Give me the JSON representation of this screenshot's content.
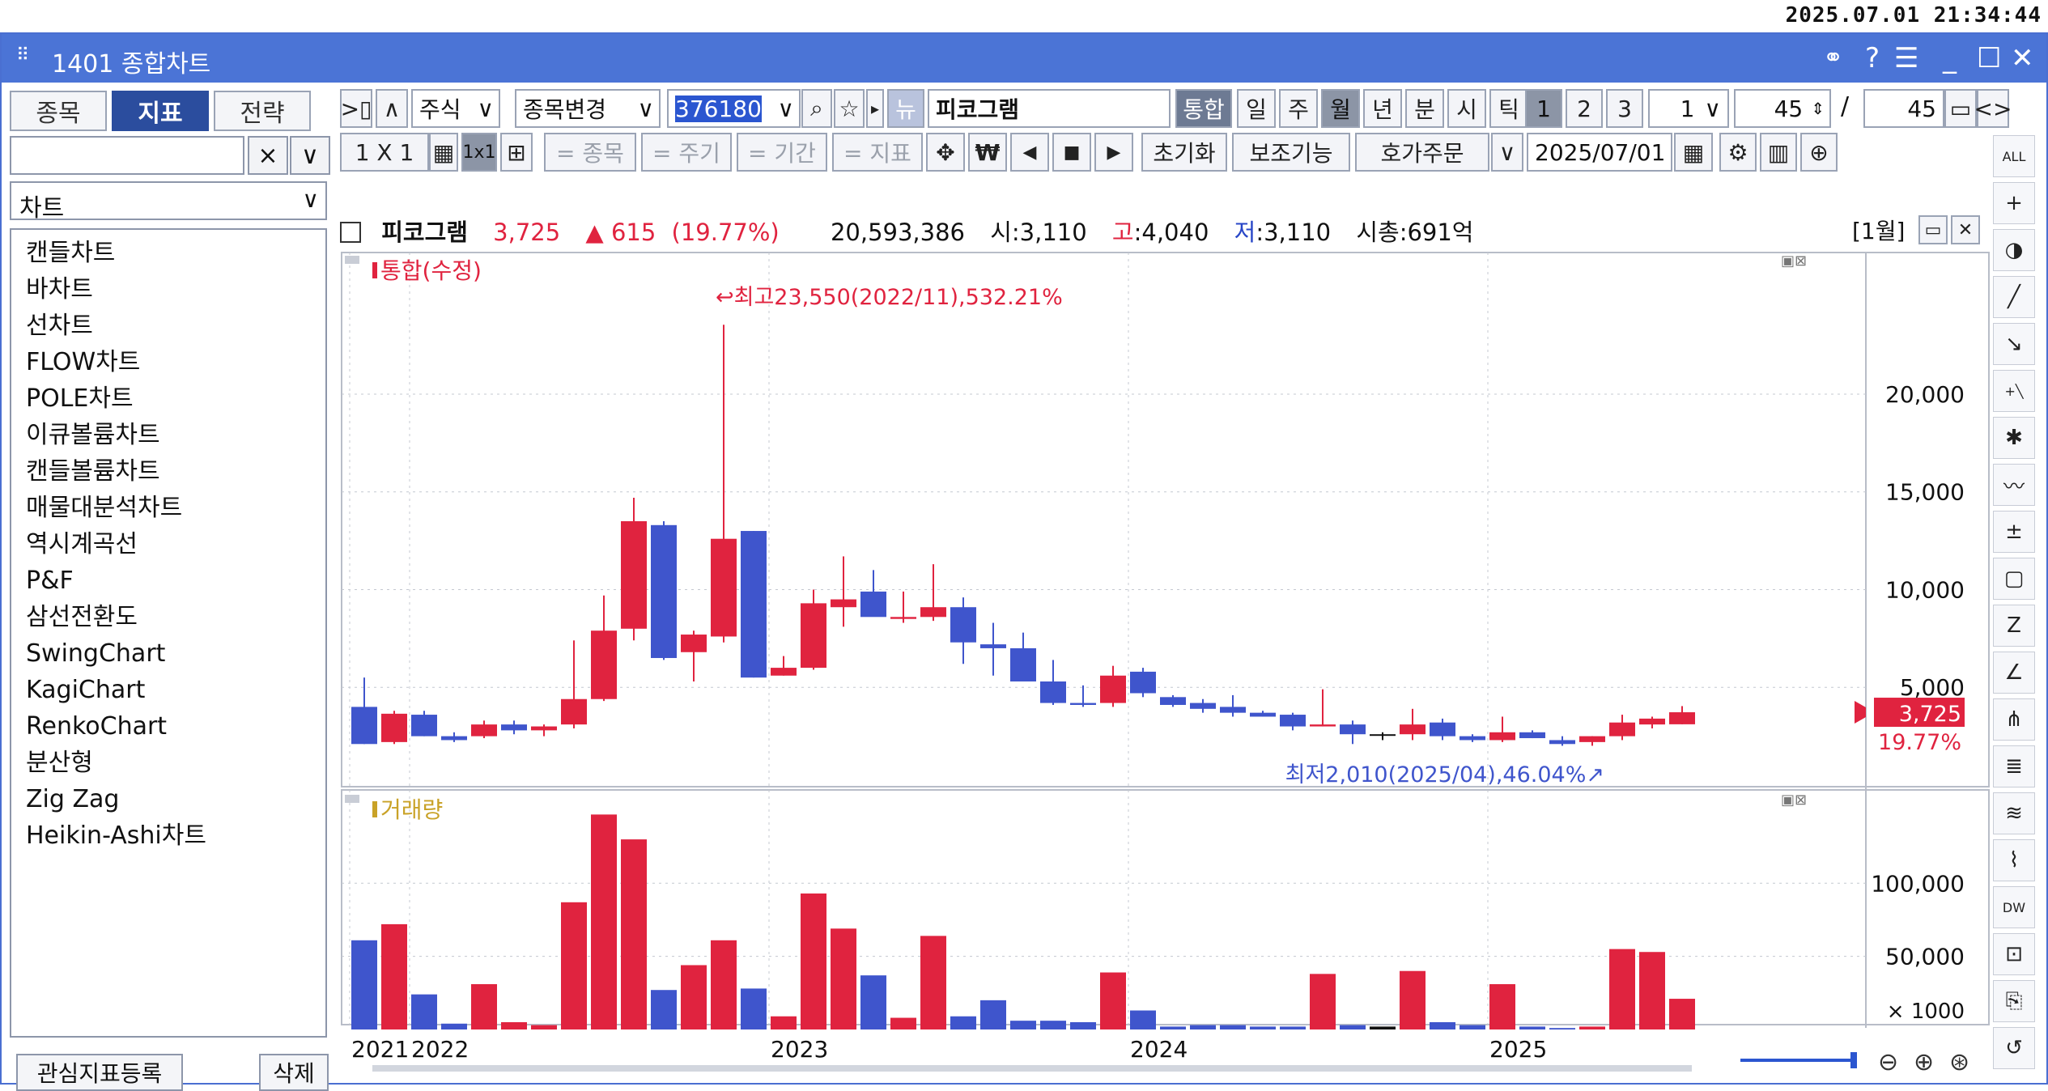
{
  "clock": "2025.07.01 21:34:44",
  "window": {
    "title": "1401 종합차트"
  },
  "left_panel": {
    "tabs": [
      "종목",
      "지표",
      "전략"
    ],
    "active_tab": "지표",
    "search_placeholder": "",
    "clear_label": "×",
    "dropdown_label": "∨",
    "category": "차트",
    "items": [
      "캔들차트",
      "바차트",
      "선차트",
      "FLOW차트",
      "POLE차트",
      "이큐볼륨차트",
      "캔들볼륨차트",
      "매물대분석차트",
      "역시계곡선",
      "P&F",
      "삼선전환도",
      "SwingChart",
      "KagiChart",
      "RenkoChart",
      "분산형",
      "Zig Zag",
      "Heikin-Ashi차트"
    ],
    "footer_register": "관심지표등록",
    "footer_delete": "삭제"
  },
  "toolbar1": {
    "market": "주식",
    "change_stock": "종목변경",
    "code": "376180",
    "news": "뉴",
    "stock_name": "피코그램",
    "integrated": "통합",
    "periods": [
      "일",
      "주",
      "월",
      "년",
      "분",
      "시",
      "틱"
    ],
    "active_period": "월",
    "nums": [
      "1",
      "2",
      "3"
    ],
    "unit": "1",
    "count_a": "45",
    "slash": "/",
    "count_b": "45"
  },
  "toolbar2": {
    "layout": "1 X 1",
    "l1x1": "1x1",
    "items_label": "= 종목",
    "period_label": "= 주기",
    "range_label": "= 기간",
    "indicator_label": "= 지표",
    "won": "₩",
    "reset": "초기화",
    "aux": "보조기능",
    "order": "호가주문",
    "date": "2025/07/01"
  },
  "info": {
    "name": "피코그램",
    "price": "3,725",
    "change": "▲ 615",
    "rate": "(19.77%)",
    "volume": "20,593,386",
    "open": "시:3,110",
    "high_label": "고",
    "high": ":4,040",
    "low_label": "저",
    "low": ":3,110",
    "cap": "시총:691억",
    "period_tag": "[1월]"
  },
  "chart_data": [
    {
      "type": "candlestick",
      "title": "통합(수정)",
      "y_ticks": [
        5000,
        10000,
        15000,
        20000
      ],
      "y_tick_labels": [
        "5,000",
        "10,000",
        "15,000",
        "20,000"
      ],
      "ylim": [
        0,
        26500
      ],
      "x_labels": [
        {
          "index": 0,
          "label": "2021"
        },
        {
          "index": 2,
          "label": "2022"
        },
        {
          "index": 14,
          "label": "2023"
        },
        {
          "index": 26,
          "label": "2024"
        },
        {
          "index": 38,
          "label": "2025"
        }
      ],
      "annotations": {
        "high": "최고23,550(2022/11),532.21%",
        "low": "최저2,010(2025/04),46.04%"
      },
      "last_price": "3,725",
      "last_rate": "19.77%",
      "candles": [
        {
          "o": 4000,
          "h": 5500,
          "l": 2100,
          "c": 2100
        },
        {
          "o": 2200,
          "h": 3800,
          "l": 2100,
          "c": 3650
        },
        {
          "o": 3600,
          "h": 3800,
          "l": 2500,
          "c": 2500
        },
        {
          "o": 2500,
          "h": 2700,
          "l": 2200,
          "c": 2300
        },
        {
          "o": 2500,
          "h": 3300,
          "l": 2400,
          "c": 3100
        },
        {
          "o": 3100,
          "h": 3300,
          "l": 2600,
          "c": 2800
        },
        {
          "o": 2800,
          "h": 3100,
          "l": 2500,
          "c": 3000
        },
        {
          "o": 3100,
          "h": 7400,
          "l": 2900,
          "c": 4400
        },
        {
          "o": 4400,
          "h": 9700,
          "l": 4300,
          "c": 7900
        },
        {
          "o": 8000,
          "h": 14700,
          "l": 7400,
          "c": 13500
        },
        {
          "o": 13300,
          "h": 13500,
          "l": 6400,
          "c": 6500
        },
        {
          "o": 6800,
          "h": 7900,
          "l": 5300,
          "c": 7700
        },
        {
          "o": 7600,
          "h": 23550,
          "l": 7300,
          "c": 12600
        },
        {
          "o": 13000,
          "h": 13000,
          "l": 5500,
          "c": 5500
        },
        {
          "o": 5600,
          "h": 6600,
          "l": 5600,
          "c": 6000
        },
        {
          "o": 6000,
          "h": 10000,
          "l": 5900,
          "c": 9300
        },
        {
          "o": 9100,
          "h": 11700,
          "l": 8100,
          "c": 9500
        },
        {
          "o": 9900,
          "h": 11000,
          "l": 8800,
          "c": 8600
        },
        {
          "o": 8500,
          "h": 9900,
          "l": 8300,
          "c": 8600
        },
        {
          "o": 8600,
          "h": 11300,
          "l": 8400,
          "c": 9100
        },
        {
          "o": 9100,
          "h": 9600,
          "l": 6200,
          "c": 7300
        },
        {
          "o": 7200,
          "h": 8300,
          "l": 5600,
          "c": 7000
        },
        {
          "o": 7000,
          "h": 7800,
          "l": 5300,
          "c": 5300
        },
        {
          "o": 5300,
          "h": 6400,
          "l": 4100,
          "c": 4200
        },
        {
          "o": 4200,
          "h": 5100,
          "l": 4000,
          "c": 4100
        },
        {
          "o": 4200,
          "h": 6100,
          "l": 4000,
          "c": 5600
        },
        {
          "o": 5800,
          "h": 6000,
          "l": 4500,
          "c": 4700
        },
        {
          "o": 4500,
          "h": 4600,
          "l": 4000,
          "c": 4100
        },
        {
          "o": 4200,
          "h": 4400,
          "l": 3700,
          "c": 3900
        },
        {
          "o": 4000,
          "h": 4600,
          "l": 3500,
          "c": 3700
        },
        {
          "o": 3700,
          "h": 3800,
          "l": 3500,
          "c": 3500
        },
        {
          "o": 3600,
          "h": 3700,
          "l": 2800,
          "c": 3000
        },
        {
          "o": 3000,
          "h": 4900,
          "l": 3000,
          "c": 3100
        },
        {
          "o": 3100,
          "h": 3300,
          "l": 2100,
          "c": 2600
        },
        {
          "o": 2600,
          "h": 2700,
          "l": 2300,
          "c": 2600
        },
        {
          "o": 2600,
          "h": 3900,
          "l": 2300,
          "c": 3100
        },
        {
          "o": 3200,
          "h": 3400,
          "l": 2300,
          "c": 2500
        },
        {
          "o": 2500,
          "h": 2600,
          "l": 2200,
          "c": 2300
        },
        {
          "o": 2300,
          "h": 3500,
          "l": 2200,
          "c": 2700
        },
        {
          "o": 2700,
          "h": 2800,
          "l": 2400,
          "c": 2400
        },
        {
          "o": 2300,
          "h": 2500,
          "l": 2010,
          "c": 2100
        },
        {
          "o": 2200,
          "h": 2500,
          "l": 2010,
          "c": 2500
        },
        {
          "o": 2500,
          "h": 3600,
          "l": 2300,
          "c": 3200
        },
        {
          "o": 3100,
          "h": 3500,
          "l": 2900,
          "c": 3400
        },
        {
          "o": 3110,
          "h": 4040,
          "l": 3110,
          "c": 3725
        }
      ]
    },
    {
      "type": "bar",
      "title": "거래량",
      "y_ticks": [
        50000,
        100000
      ],
      "y_tick_labels": [
        "50,000",
        "100,000"
      ],
      "unit_label": "× 1000",
      "ylim": [
        0,
        145000
      ],
      "values": [
        61000,
        72000,
        24000,
        4000,
        31000,
        5000,
        3000,
        87000,
        147000,
        130000,
        27000,
        44000,
        61000,
        28000,
        9000,
        93000,
        69000,
        37000,
        8000,
        64000,
        9000,
        20000,
        6000,
        6000,
        5000,
        39000,
        13000,
        2000,
        3000,
        3000,
        2000,
        2000,
        38000,
        3000,
        2000,
        40000,
        5000,
        3000,
        31000,
        2000,
        1000,
        2000,
        55000,
        53000,
        21000
      ],
      "directions": [
        "down",
        "up",
        "down",
        "down",
        "up",
        "up",
        "up",
        "up",
        "up",
        "up",
        "down",
        "up",
        "up",
        "down",
        "up",
        "up",
        "up",
        "down",
        "up",
        "up",
        "down",
        "down",
        "down",
        "down",
        "down",
        "up",
        "down",
        "down",
        "down",
        "down",
        "down",
        "down",
        "up",
        "down",
        "flat",
        "up",
        "down",
        "down",
        "up",
        "down",
        "down",
        "up",
        "up",
        "up",
        "up"
      ]
    }
  ]
}
